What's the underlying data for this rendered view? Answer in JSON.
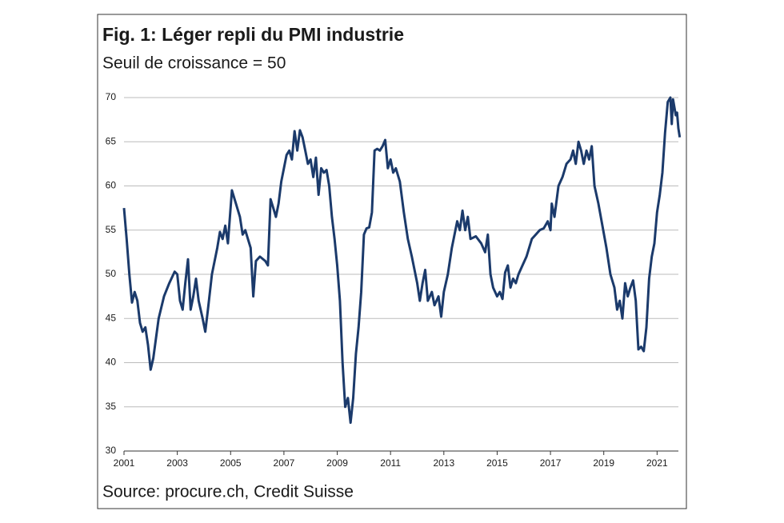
{
  "chart_data": {
    "type": "line",
    "title": "Fig. 1: Léger repli du PMI industrie",
    "subtitle": "Seuil de croissance = 50",
    "source": "Source: procure.ch, Credit Suisse",
    "x": [
      2001.0,
      2001.1,
      2001.2,
      2001.3,
      2001.4,
      2001.5,
      2001.6,
      2001.7,
      2001.8,
      2001.9,
      2002.0,
      2002.1,
      2002.3,
      2002.5,
      2002.7,
      2002.9,
      2003.0,
      2003.1,
      2003.2,
      2003.3,
      2003.4,
      2003.5,
      2003.6,
      2003.7,
      2003.8,
      2003.95,
      2004.05,
      2004.15,
      2004.3,
      2004.5,
      2004.6,
      2004.7,
      2004.8,
      2004.9,
      2005.05,
      2005.2,
      2005.35,
      2005.45,
      2005.55,
      2005.65,
      2005.75,
      2005.85,
      2005.95,
      2006.1,
      2006.3,
      2006.4,
      2006.5,
      2006.6,
      2006.7,
      2006.8,
      2006.9,
      2007.0,
      2007.1,
      2007.2,
      2007.3,
      2007.4,
      2007.5,
      2007.6,
      2007.7,
      2007.8,
      2007.9,
      2008.0,
      2008.1,
      2008.2,
      2008.3,
      2008.4,
      2008.5,
      2008.6,
      2008.7,
      2008.8,
      2008.9,
      2009.0,
      2009.1,
      2009.2,
      2009.3,
      2009.4,
      2009.5,
      2009.6,
      2009.7,
      2009.8,
      2009.9,
      2010.0,
      2010.1,
      2010.2,
      2010.3,
      2010.4,
      2010.5,
      2010.6,
      2010.7,
      2010.8,
      2010.9,
      2011.0,
      2011.1,
      2011.2,
      2011.35,
      2011.5,
      2011.65,
      2011.8,
      2012.0,
      2012.1,
      2012.2,
      2012.3,
      2012.4,
      2012.55,
      2012.65,
      2012.8,
      2012.9,
      2013.0,
      2013.15,
      2013.3,
      2013.5,
      2013.6,
      2013.7,
      2013.8,
      2013.9,
      2014.0,
      2014.2,
      2014.4,
      2014.55,
      2014.65,
      2014.75,
      2014.85,
      2015.0,
      2015.1,
      2015.2,
      2015.3,
      2015.4,
      2015.5,
      2015.6,
      2015.7,
      2015.8,
      2015.95,
      2016.1,
      2016.3,
      2016.45,
      2016.6,
      2016.75,
      2016.9,
      2017.0,
      2017.05,
      2017.15,
      2017.3,
      2017.45,
      2017.6,
      2017.75,
      2017.85,
      2017.95,
      2018.05,
      2018.15,
      2018.25,
      2018.35,
      2018.45,
      2018.55,
      2018.65,
      2018.8,
      2018.95,
      2019.1,
      2019.25,
      2019.4,
      2019.5,
      2019.6,
      2019.7,
      2019.8,
      2019.9,
      2020.0,
      2020.1,
      2020.2,
      2020.3,
      2020.4,
      2020.5,
      2020.6,
      2020.7,
      2020.8,
      2020.9,
      2021.0,
      2021.1,
      2021.2,
      2021.3,
      2021.4,
      2021.5,
      2021.55,
      2021.6,
      2021.7,
      2021.75,
      2021.8,
      2021.85
    ],
    "series": [
      {
        "name": "PMI",
        "color": "#1b3a6b",
        "values": [
          57.5,
          54,
          50,
          46.8,
          48,
          47,
          44.5,
          43.5,
          44,
          42,
          39.2,
          40.5,
          45,
          47.5,
          49,
          50.3,
          50,
          47,
          46,
          49,
          51.7,
          46,
          47.5,
          49.5,
          47,
          45,
          43.5,
          46,
          50,
          53,
          54.8,
          54,
          55.5,
          53.5,
          59.5,
          58,
          56.5,
          54.5,
          55,
          54,
          53,
          47.5,
          51.5,
          52,
          51.5,
          51,
          58.5,
          57.5,
          56.5,
          58,
          60.5,
          62,
          63.5,
          64,
          63,
          66.2,
          64,
          66.3,
          65.5,
          64,
          62.5,
          63,
          61,
          63.2,
          59,
          62,
          61.5,
          61.8,
          60,
          56.5,
          54,
          51,
          47,
          40,
          35,
          36,
          33.2,
          36,
          41,
          44,
          48,
          54.5,
          55.2,
          55.3,
          57,
          64,
          64.2,
          64,
          64.5,
          65.2,
          62,
          63,
          61.5,
          62,
          60.5,
          57,
          54,
          52,
          49,
          47,
          49,
          50.5,
          47,
          48,
          46.5,
          47.5,
          45.2,
          48,
          50,
          53,
          56,
          55,
          57.2,
          55,
          56.5,
          54,
          54.3,
          53.5,
          52.5,
          54.5,
          50,
          48.5,
          47.5,
          48,
          47.2,
          50.2,
          51,
          48.5,
          49.5,
          49,
          50,
          51,
          52,
          54,
          54.5,
          55,
          55.2,
          56,
          55,
          58,
          56.5,
          60,
          61,
          62.5,
          63,
          64,
          62.5,
          65,
          64,
          62.5,
          64,
          63,
          64.5,
          60,
          58,
          55.5,
          53,
          50,
          48.5,
          46,
          47,
          45,
          49,
          47.5,
          48.5,
          49.3,
          47,
          41.5,
          41.8,
          41.3,
          44,
          49.5,
          52,
          53.5,
          57,
          59,
          61.5,
          66,
          69.5,
          70,
          67,
          69.8,
          68,
          68.3,
          66.5,
          65.5
        ]
      }
    ],
    "xlim": [
      2001,
      2021.8
    ],
    "xticks": [
      2001,
      2003,
      2005,
      2007,
      2009,
      2011,
      2013,
      2015,
      2017,
      2019,
      2021
    ],
    "ylim": [
      30,
      70
    ],
    "yticks": [
      30,
      35,
      40,
      45,
      50,
      55,
      60,
      65,
      70
    ],
    "grid": true
  }
}
